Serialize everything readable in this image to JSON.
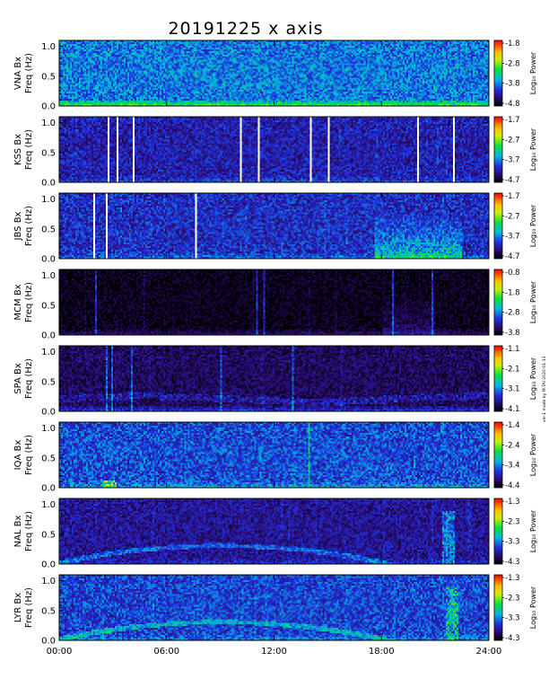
{
  "chart_data": {
    "type": "heatmap",
    "title": "20191225 x axis",
    "x_tick_labels": [
      "00:00",
      "06:00",
      "12:00",
      "18:00",
      "24:00"
    ],
    "x_ticks_hours": [
      0,
      6,
      12,
      18,
      24
    ],
    "xlim_hours": [
      0,
      24
    ],
    "ylim": [
      0,
      1.1
    ],
    "y_tick_labels": [
      "0.0",
      "0.5",
      "1.0"
    ],
    "y_ticks": [
      0.0,
      0.5,
      1.0
    ],
    "ylabel": "Freq (Hz)",
    "colorbar_label": "Log₁₀ Power",
    "side_note": "ver.1 made by M.TAI 2020-01-13",
    "panels": [
      {
        "station": "VNA Bx",
        "clim": [
          -4.8,
          -1.8
        ],
        "cbar_ticks": [
          "-1.8",
          "-2.8",
          "-3.8",
          "-4.8"
        ]
      },
      {
        "station": "KSS Bx",
        "clim": [
          -4.7,
          -1.7
        ],
        "cbar_ticks": [
          "-1.7",
          "-2.7",
          "-3.7",
          "-4.7"
        ]
      },
      {
        "station": "JBS Bx",
        "clim": [
          -4.7,
          -1.7
        ],
        "cbar_ticks": [
          "-1.7",
          "-2.7",
          "-3.7",
          "-4.7"
        ]
      },
      {
        "station": "MCM Bx",
        "clim": [
          -3.8,
          -0.8
        ],
        "cbar_ticks": [
          "-0.8",
          "-1.8",
          "-2.8",
          "-3.8"
        ]
      },
      {
        "station": "SPA Bx",
        "clim": [
          -4.1,
          -1.1
        ],
        "cbar_ticks": [
          "-1.1",
          "-2.1",
          "-3.1",
          "-4.1"
        ]
      },
      {
        "station": "IQA Bx",
        "clim": [
          -4.4,
          -1.4
        ],
        "cbar_ticks": [
          "-1.4",
          "-2.4",
          "-3.4",
          "-4.4"
        ]
      },
      {
        "station": "NAL Bx",
        "clim": [
          -4.3,
          -1.3
        ],
        "cbar_ticks": [
          "-1.3",
          "-2.3",
          "-3.3",
          "-4.3"
        ]
      },
      {
        "station": "LYR Bx",
        "clim": [
          -4.3,
          -1.3
        ],
        "cbar_ticks": [
          "-1.3",
          "-2.3",
          "-3.3",
          "-4.3"
        ]
      }
    ]
  }
}
